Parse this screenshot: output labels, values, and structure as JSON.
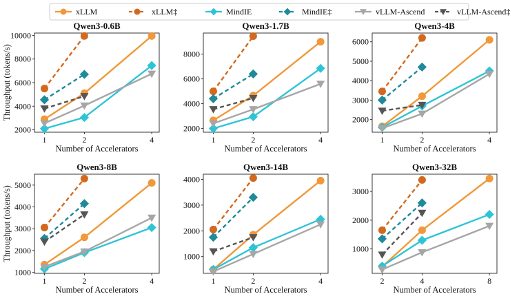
{
  "chart_data": {
    "type": "line",
    "legend": {
      "placement": "top-center",
      "entries": [
        {
          "name": "xLLM",
          "color": "#f0983a",
          "dash": false,
          "marker": "circle"
        },
        {
          "name": "xLLM‡",
          "color": "#d2691e",
          "dash": true,
          "marker": "circle"
        },
        {
          "name": "MindIE",
          "color": "#2ec4d6",
          "dash": false,
          "marker": "diamond"
        },
        {
          "name": "MindIE‡",
          "color": "#1e8a9a",
          "dash": true,
          "marker": "diamond"
        },
        {
          "name": "vLLM-Ascend",
          "color": "#a6a6a6",
          "dash": false,
          "marker": "triangle"
        },
        {
          "name": "vLLM-Ascend‡",
          "color": "#555555",
          "dash": true,
          "marker": "triangle"
        }
      ]
    },
    "xlabel": "Number of Accelerators",
    "ylabel": "Throughput (tokens/s)",
    "panels": [
      {
        "title": "Qwen3-0.6B",
        "xticks": [
          "1",
          "2",
          "4"
        ],
        "ylim": [
          1800,
          10200
        ],
        "yticks": [
          2000,
          4000,
          6000,
          8000,
          10000
        ],
        "series": [
          {
            "name": "xLLM",
            "values": [
              2900,
              5100,
              9950
            ]
          },
          {
            "name": "xLLM‡",
            "values": [
              5500,
              9950,
              null
            ]
          },
          {
            "name": "MindIE",
            "values": [
              2100,
              3050,
              7450
            ]
          },
          {
            "name": "MindIE‡",
            "values": [
              4550,
              6700,
              null
            ]
          },
          {
            "name": "vLLM-Ascend",
            "values": [
              2550,
              4050,
              6750
            ]
          },
          {
            "name": "vLLM-Ascend‡",
            "values": [
              3800,
              4850,
              null
            ]
          }
        ]
      },
      {
        "title": "Qwen3-1.7B",
        "xticks": [
          "1",
          "2",
          "4"
        ],
        "ylim": [
          1700,
          9700
        ],
        "yticks": [
          2000,
          4000,
          6000,
          8000
        ],
        "series": [
          {
            "name": "xLLM",
            "values": [
              2650,
              4650,
              9000
            ]
          },
          {
            "name": "xLLM‡",
            "values": [
              5000,
              9450,
              null
            ]
          },
          {
            "name": "MindIE",
            "values": [
              2000,
              2950,
              6850
            ]
          },
          {
            "name": "MindIE‡",
            "values": [
              4400,
              6400,
              null
            ]
          },
          {
            "name": "vLLM-Ascend",
            "values": [
              2400,
              3550,
              5600
            ]
          },
          {
            "name": "vLLM-Ascend‡",
            "values": [
              3550,
              4450,
              null
            ]
          }
        ]
      },
      {
        "title": "Qwen3-4B",
        "xticks": [
          "1",
          "2",
          "4"
        ],
        "ylim": [
          1350,
          6450
        ],
        "yticks": [
          2000,
          3000,
          4000,
          5000,
          6000
        ],
        "series": [
          {
            "name": "xLLM",
            "values": [
              1650,
              3200,
              6100
            ]
          },
          {
            "name": "xLLM‡",
            "values": [
              3450,
              6200,
              null
            ]
          },
          {
            "name": "MindIE",
            "values": [
              1600,
              2700,
              4500
            ]
          },
          {
            "name": "MindIE‡",
            "values": [
              3000,
              4700,
              null
            ]
          },
          {
            "name": "vLLM-Ascend",
            "values": [
              1550,
              2300,
              4350
            ]
          },
          {
            "name": "vLLM-Ascend‡",
            "values": [
              2450,
              2750,
              null
            ]
          }
        ]
      },
      {
        "title": "Qwen3-8B",
        "xticks": [
          "1",
          "2",
          "4"
        ],
        "ylim": [
          950,
          5500
        ],
        "yticks": [
          1000,
          2000,
          3000,
          4000,
          5000
        ],
        "series": [
          {
            "name": "xLLM",
            "values": [
              1350,
              2600,
              5100
            ]
          },
          {
            "name": "xLLM‡",
            "values": [
              3050,
              5300,
              null
            ]
          },
          {
            "name": "MindIE",
            "values": [
              1150,
              1900,
              3050
            ]
          },
          {
            "name": "MindIE‡",
            "values": [
              2550,
              4150,
              null
            ]
          },
          {
            "name": "vLLM-Ascend",
            "values": [
              1250,
              1950,
              3500
            ]
          },
          {
            "name": "vLLM-Ascend‡",
            "values": [
              2400,
              3650,
              null
            ]
          }
        ]
      },
      {
        "title": "Qwen3-14B",
        "xticks": [
          "1",
          "2",
          "4"
        ],
        "ylim": [
          350,
          4200
        ],
        "yticks": [
          1000,
          2000,
          3000,
          4000
        ],
        "series": [
          {
            "name": "xLLM",
            "values": [
              500,
              1850,
              3950
            ]
          },
          {
            "name": "xLLM‡",
            "values": [
              2050,
              4050,
              null
            ]
          },
          {
            "name": "MindIE",
            "values": [
              500,
              1350,
              2450
            ]
          },
          {
            "name": "MindIE‡",
            "values": [
              1750,
              3300,
              null
            ]
          },
          {
            "name": "vLLM-Ascend",
            "values": [
              420,
              1100,
              2250
            ]
          },
          {
            "name": "vLLM-Ascend‡",
            "values": [
              1200,
              1750,
              null
            ]
          }
        ]
      },
      {
        "title": "Qwen3-32B",
        "xticks": [
          "2",
          "4",
          "8"
        ],
        "ylim": [
          150,
          3600
        ],
        "yticks": [
          1000,
          2000,
          3000
        ],
        "series": [
          {
            "name": "xLLM",
            "values": [
              380,
              1650,
              3450
            ]
          },
          {
            "name": "xLLM‡",
            "values": [
              1650,
              3400,
              null
            ]
          },
          {
            "name": "MindIE",
            "values": [
              400,
              1300,
              2200
            ]
          },
          {
            "name": "MindIE‡",
            "values": [
              1350,
              2600,
              null
            ]
          },
          {
            "name": "vLLM-Ascend",
            "values": [
              280,
              880,
              1800
            ]
          },
          {
            "name": "vLLM-Ascend‡",
            "values": [
              800,
              2250,
              null
            ]
          }
        ]
      }
    ]
  }
}
